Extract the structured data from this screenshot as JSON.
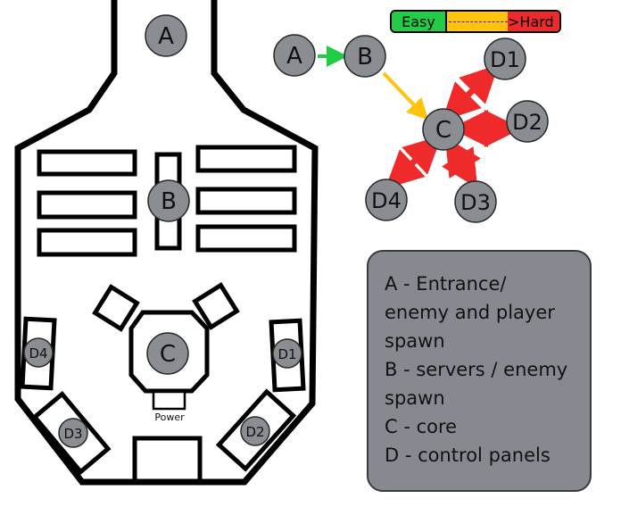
{
  "map": {
    "room_labels": {
      "entrance": "A",
      "servers": "B",
      "core": "C",
      "panel_1": "D1",
      "panel_2": "D2",
      "panel_3": "D3",
      "panel_4": "D4"
    },
    "power_label": "Power"
  },
  "difficulty": {
    "easy_label": "Easy",
    "hard_label": ">Hard",
    "colors": {
      "easy": "#22cc44",
      "mid": "#ffc20e",
      "hard": "#ee2a2a"
    }
  },
  "flow": {
    "nodes": {
      "a": "A",
      "b": "B",
      "c": "C",
      "d1": "D1",
      "d2": "D2",
      "d3": "D3",
      "d4": "D4"
    },
    "arrow_colors": {
      "a_to_b": "#22cc44",
      "b_to_c": "#ffc20e",
      "c_to_d": "#ee2a2a"
    }
  },
  "legend": {
    "lines": [
      "A - Entrance/",
      "enemy and player",
      "spawn",
      "B - servers / enemy",
      "spawn",
      "C - core",
      "D - control panels"
    ]
  }
}
